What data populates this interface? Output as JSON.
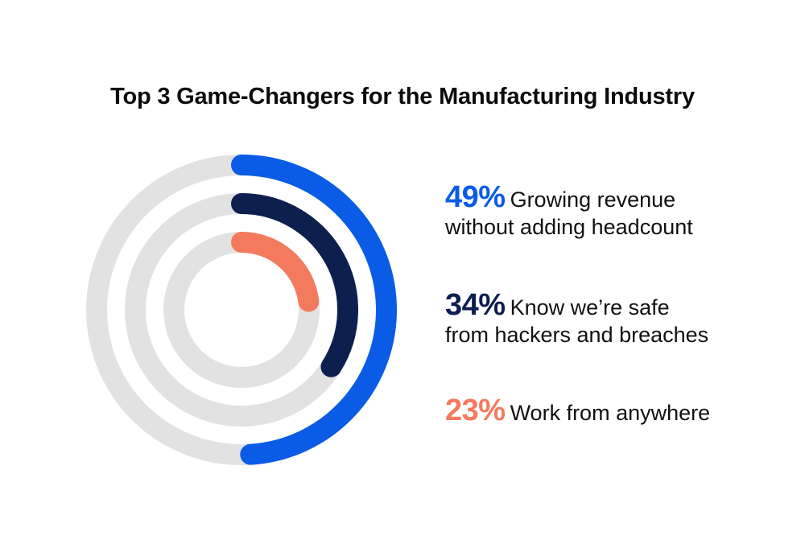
{
  "chart_data": {
    "type": "radial-bar",
    "title": "Top 3 Game-Changers for the Manufacturing Industry",
    "max": 100,
    "track_color": "#e2e2e2",
    "series": [
      {
        "percent_label": "49%",
        "value": 49,
        "label": "Growing revenue\nwithout adding headcount",
        "color": "#0a5ce6"
      },
      {
        "percent_label": "34%",
        "value": 34,
        "label": "Know we’re safe\nfrom hackers and breaches",
        "color": "#0d1f4f"
      },
      {
        "percent_label": "23%",
        "value": 23,
        "label": "Work from anywhere",
        "color": "#f47a5e"
      }
    ]
  }
}
